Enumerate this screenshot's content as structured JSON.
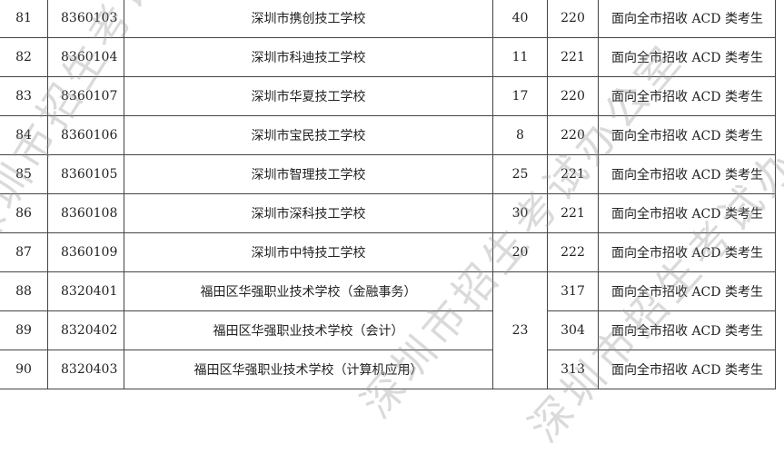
{
  "watermark": "深圳市招生考试办公室",
  "rows": [
    {
      "no": "81",
      "code": "8360103",
      "school": "深圳市携创技工学校",
      "plan": "40",
      "score": "220",
      "note": "面向全市招收 ACD 类考生"
    },
    {
      "no": "82",
      "code": "8360104",
      "school": "深圳市科迪技工学校",
      "plan": "11",
      "score": "221",
      "note": "面向全市招收 ACD 类考生"
    },
    {
      "no": "83",
      "code": "8360107",
      "school": "深圳市华夏技工学校",
      "plan": "17",
      "score": "220",
      "note": "面向全市招收 ACD 类考生"
    },
    {
      "no": "84",
      "code": "8360106",
      "school": "深圳市宝民技工学校",
      "plan": "8",
      "score": "220",
      "note": "面向全市招收 ACD 类考生"
    },
    {
      "no": "85",
      "code": "8360105",
      "school": "深圳市智理技工学校",
      "plan": "25",
      "score": "221",
      "note": "面向全市招收 ACD 类考生"
    },
    {
      "no": "86",
      "code": "8360108",
      "school": "深圳市深科技工学校",
      "plan": "30",
      "score": "221",
      "note": "面向全市招收 ACD 类考生"
    },
    {
      "no": "87",
      "code": "8360109",
      "school": "深圳市中特技工学校",
      "plan": "20",
      "score": "222",
      "note": "面向全市招收 ACD 类考生"
    },
    {
      "no": "88",
      "code": "8320401",
      "school": "福田区华强职业技术学校（金融事务）",
      "plan": "23",
      "score": "317",
      "note": "面向全市招收 ACD 类考生"
    },
    {
      "no": "89",
      "code": "8320402",
      "school": "福田区华强职业技术学校（会计）",
      "score": "304",
      "note": "面向全市招收 ACD 类考生"
    },
    {
      "no": "90",
      "code": "8320403",
      "school": "福田区华强职业技术学校（计算机应用）",
      "score": "313",
      "note": "面向全市招收 ACD 类考生"
    }
  ]
}
